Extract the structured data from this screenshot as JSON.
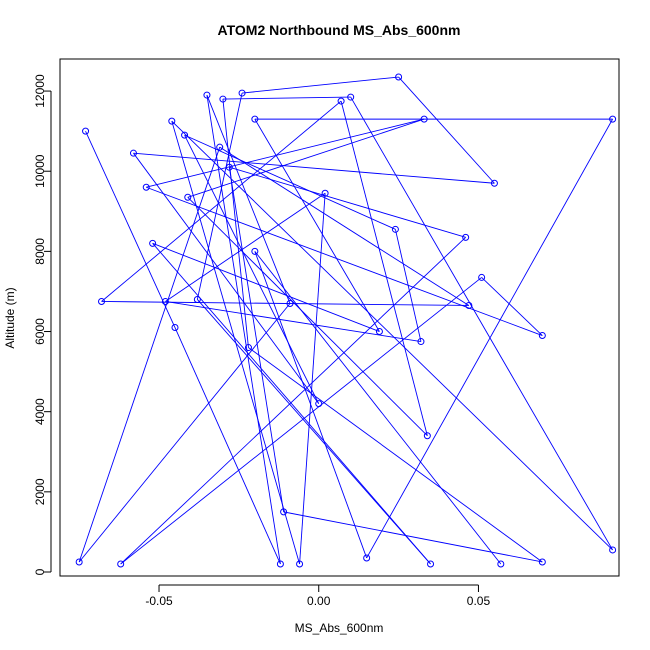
{
  "chart_data": {
    "type": "line",
    "title": "ATOM2 Northbound MS_Abs_600nm",
    "xlabel": "MS_Abs_600nm",
    "ylabel": "Altitude (m)",
    "xlim": [
      -0.081,
      0.094
    ],
    "ylim": [
      -100,
      12800
    ],
    "xticks": [
      -0.05,
      0.0,
      0.05
    ],
    "xtick_labels": [
      "-0.05",
      "0.00",
      "0.05"
    ],
    "yticks": [
      0,
      2000,
      4000,
      6000,
      8000,
      10000,
      12000
    ],
    "ytick_labels": [
      "0",
      "2000",
      "4000",
      "6000",
      "8000",
      "10000",
      "12000"
    ],
    "grid": false,
    "series_color": "#0000ff",
    "marker": "open-circle",
    "points": [
      {
        "x": -0.073,
        "y": 11000
      },
      {
        "x": -0.045,
        "y": 6100
      },
      {
        "x": -0.012,
        "y": 200
      },
      {
        "x": -0.035,
        "y": 11900
      },
      {
        "x": -0.009,
        "y": 6700
      },
      {
        "x": -0.075,
        "y": 250
      },
      {
        "x": -0.031,
        "y": 10600
      },
      {
        "x": 0.047,
        "y": 6650
      },
      {
        "x": -0.068,
        "y": 6750
      },
      {
        "x": 0.007,
        "y": 11750
      },
      {
        "x": 0.034,
        "y": 3400
      },
      {
        "x": -0.041,
        "y": 9350
      },
      {
        "x": 0.033,
        "y": 11300
      },
      {
        "x": -0.054,
        "y": 9600
      },
      {
        "x": 0.07,
        "y": 5900
      },
      {
        "x": 0.051,
        "y": 7350
      },
      {
        "x": -0.062,
        "y": 200
      },
      {
        "x": 0.046,
        "y": 8350
      },
      {
        "x": -0.028,
        "y": 10100
      },
      {
        "x": -0.011,
        "y": 1500
      },
      {
        "x": 0.07,
        "y": 250
      },
      {
        "x": -0.022,
        "y": 5600
      },
      {
        "x": -0.03,
        "y": 11800
      },
      {
        "x": 0.01,
        "y": 11850
      },
      {
        "x": 0.092,
        "y": 550
      },
      {
        "x": -0.046,
        "y": 11250
      },
      {
        "x": -0.006,
        "y": 200
      },
      {
        "x": 0.002,
        "y": 9450
      },
      {
        "x": -0.048,
        "y": 6750
      },
      {
        "x": 0.032,
        "y": 5750
      },
      {
        "x": 0.024,
        "y": 8550
      },
      {
        "x": -0.042,
        "y": 10900
      },
      {
        "x": 0.0,
        "y": 4200
      },
      {
        "x": -0.058,
        "y": 10450
      },
      {
        "x": 0.055,
        "y": 9700
      },
      {
        "x": 0.025,
        "y": 12350
      },
      {
        "x": -0.024,
        "y": 11950
      },
      {
        "x": -0.038,
        "y": 6800
      },
      {
        "x": 0.035,
        "y": 200
      },
      {
        "x": -0.052,
        "y": 8200
      },
      {
        "x": 0.019,
        "y": 6000
      },
      {
        "x": -0.02,
        "y": 11300
      },
      {
        "x": 0.092,
        "y": 11300
      },
      {
        "x": 0.015,
        "y": 350
      },
      {
        "x": -0.02,
        "y": 8000
      },
      {
        "x": 0.057,
        "y": 200
      }
    ]
  }
}
